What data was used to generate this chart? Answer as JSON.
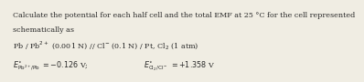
{
  "line1": "Calculate the potential for each half cell and the total EMF at 25 °C for the cell represented",
  "line2": "schematically as",
  "line3": "Pb / Pb$^{2+}$ (0.001 N) // Cl$^{-}$ (0.1 N) / Pt, Cl$_2$ (1 atm)",
  "line4_left": "$E^{\\circ}_{\\mathrm{Pb}^{2+}/\\mathrm{Pb}}$",
  "line4_eq_left": " $= -0.126$ V;",
  "line4_mid": "$E^{\\circ}_{\\mathrm{Cl_2/Cl}^-}$",
  "line4_eq_right": " $= +1.358$ V",
  "bg_color": "#f0ede3",
  "text_color": "#2a2a2a",
  "font_size": 5.8
}
